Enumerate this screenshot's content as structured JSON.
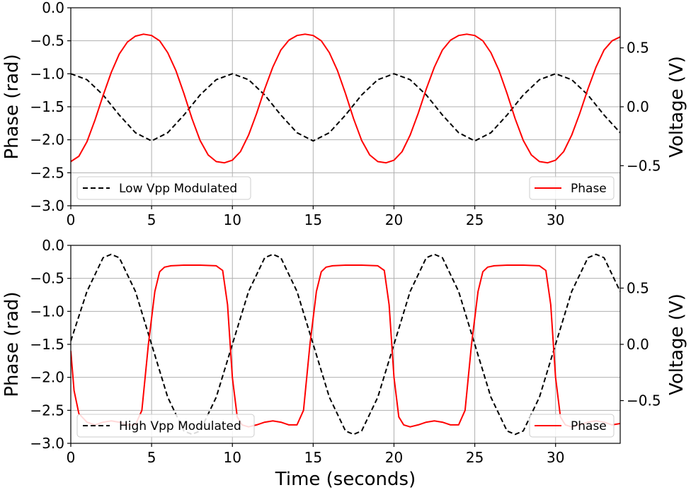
{
  "colors": {
    "phase": "#ff0000",
    "voltage": "#000000",
    "grid": "#b0b0b0"
  },
  "xlabel": "Time (seconds)",
  "chart_data": [
    {
      "type": "line",
      "panel": "top",
      "ylabel_left": "Phase (rad)",
      "ylabel_right": "Voltage (V)",
      "xlim": [
        0,
        34
      ],
      "ylim_left": [
        -3.0,
        0.0
      ],
      "ylim_right": [
        -0.84,
        0.84
      ],
      "xticks": [
        "0",
        "5",
        "10",
        "15",
        "20",
        "25",
        "30"
      ],
      "yticks_left": [
        "0.0",
        "−0.5",
        "−1.0",
        "−1.5",
        "−2.0",
        "−2.5",
        "−3.0"
      ],
      "yticks_right": [
        "0.5",
        "0.0",
        "−0.5"
      ],
      "grid": true,
      "period_s": 10,
      "series": [
        {
          "name": "Low Vpp Modulated",
          "axis": "right",
          "style": "dashed",
          "legend_loc": "lower-left",
          "x": [
            0,
            1,
            2,
            3,
            4,
            5,
            6,
            7,
            8,
            9,
            10,
            11,
            12,
            13,
            14,
            15,
            16,
            17,
            18,
            19,
            20,
            21,
            22,
            23,
            24,
            25,
            26,
            27,
            28,
            29,
            30,
            31,
            32,
            33,
            34
          ],
          "values": [
            0.28,
            0.23,
            0.1,
            -0.07,
            -0.22,
            -0.29,
            -0.22,
            -0.07,
            0.1,
            0.23,
            0.28,
            0.23,
            0.1,
            -0.07,
            -0.22,
            -0.29,
            -0.22,
            -0.07,
            0.1,
            0.23,
            0.28,
            0.23,
            0.1,
            -0.07,
            -0.22,
            -0.29,
            -0.22,
            -0.07,
            0.1,
            0.23,
            0.28,
            0.23,
            0.1,
            -0.07,
            -0.22
          ]
        },
        {
          "name": "Phase",
          "axis": "left",
          "style": "solid",
          "legend_loc": "lower-right",
          "x": [
            0,
            0.5,
            1,
            1.5,
            2,
            2.5,
            3,
            3.5,
            4,
            4.5,
            5,
            5.5,
            6,
            6.5,
            7,
            7.5,
            8,
            8.5,
            9,
            9.5,
            10,
            10.5,
            11,
            11.5,
            12,
            12.5,
            13,
            13.5,
            14,
            14.5,
            15,
            15.5,
            16,
            16.5,
            17,
            17.5,
            18,
            18.5,
            19,
            19.5,
            20,
            20.5,
            21,
            21.5,
            22,
            22.5,
            23,
            23.5,
            24,
            24.5,
            25,
            25.5,
            26,
            26.5,
            27,
            27.5,
            28,
            28.5,
            29,
            29.5,
            30,
            30.5,
            31,
            31.5,
            32,
            32.5,
            33,
            33.5,
            34
          ],
          "values": [
            -2.33,
            -2.25,
            -2.03,
            -1.7,
            -1.33,
            -0.98,
            -0.7,
            -0.52,
            -0.43,
            -0.4,
            -0.42,
            -0.5,
            -0.68,
            -0.95,
            -1.3,
            -1.68,
            -2.01,
            -2.23,
            -2.33,
            -2.35,
            -2.31,
            -2.18,
            -1.93,
            -1.6,
            -1.23,
            -0.9,
            -0.64,
            -0.49,
            -0.42,
            -0.4,
            -0.42,
            -0.5,
            -0.68,
            -0.95,
            -1.3,
            -1.68,
            -2.01,
            -2.23,
            -2.33,
            -2.35,
            -2.31,
            -2.18,
            -1.93,
            -1.6,
            -1.23,
            -0.9,
            -0.64,
            -0.49,
            -0.42,
            -0.4,
            -0.42,
            -0.5,
            -0.68,
            -0.95,
            -1.3,
            -1.68,
            -2.01,
            -2.23,
            -2.33,
            -2.35,
            -2.31,
            -2.18,
            -1.93,
            -1.6,
            -1.23,
            -0.9,
            -0.64,
            -0.5,
            -0.44
          ]
        }
      ]
    },
    {
      "type": "line",
      "panel": "bottom",
      "ylabel_left": "Phase (rad)",
      "ylabel_right": "Voltage (V)",
      "xlabel": "Time (seconds)",
      "xlim": [
        0,
        34
      ],
      "ylim_left": [
        -3.0,
        0.0
      ],
      "ylim_right": [
        -0.88,
        0.88
      ],
      "xticks": [
        "0",
        "5",
        "10",
        "15",
        "20",
        "25",
        "30"
      ],
      "yticks_left": [
        "0.0",
        "−0.5",
        "−1.0",
        "−1.5",
        "−2.0",
        "−2.5",
        "−3.0"
      ],
      "yticks_right": [
        "0.5",
        "0.0",
        "−0.5"
      ],
      "grid": true,
      "period_s": 10,
      "series": [
        {
          "name": "High Vpp Modulated",
          "axis": "right",
          "style": "dashed",
          "legend_loc": "lower-left",
          "x": [
            0,
            1,
            2,
            2.5,
            3,
            4,
            5,
            6,
            7,
            7.5,
            8,
            9,
            10,
            11,
            12,
            12.5,
            13,
            14,
            15,
            16,
            17,
            17.5,
            18,
            19,
            20,
            21,
            22,
            22.5,
            23,
            24,
            25,
            26,
            27,
            27.5,
            28,
            29,
            30,
            31,
            32,
            32.5,
            33,
            34
          ],
          "values": [
            0.03,
            0.47,
            0.77,
            0.8,
            0.77,
            0.47,
            0.0,
            -0.47,
            -0.77,
            -0.8,
            -0.77,
            -0.47,
            0.0,
            0.47,
            0.77,
            0.8,
            0.77,
            0.47,
            0.0,
            -0.47,
            -0.77,
            -0.8,
            -0.77,
            -0.47,
            0.0,
            0.47,
            0.77,
            0.8,
            0.77,
            0.47,
            0.0,
            -0.47,
            -0.77,
            -0.8,
            -0.77,
            -0.47,
            0.0,
            0.47,
            0.77,
            0.8,
            0.77,
            0.47
          ]
        },
        {
          "name": "Phase",
          "axis": "left",
          "style": "solid",
          "legend_loc": "lower-right",
          "x": [
            0,
            0.2,
            0.5,
            1,
            1.5,
            2,
            2.5,
            3,
            3.5,
            4,
            4.4,
            4.8,
            5.2,
            5.5,
            5.8,
            6.2,
            7,
            8,
            9,
            9.4,
            9.7,
            10,
            10.3,
            10.6,
            11,
            11.5,
            12,
            12.5,
            13,
            13.5,
            14,
            14.4,
            14.8,
            15.2,
            15.5,
            15.8,
            16.2,
            17,
            18,
            19,
            19.4,
            19.7,
            20,
            20.3,
            20.6,
            21,
            21.5,
            22,
            22.5,
            23,
            23.5,
            24,
            24.4,
            24.8,
            25.2,
            25.5,
            25.8,
            26.2,
            27,
            28,
            29,
            29.4,
            29.7,
            30,
            30.3,
            30.6,
            31,
            31.5,
            32,
            32.5,
            33,
            33.5,
            34
          ],
          "values": [
            -1.6,
            -2.2,
            -2.55,
            -2.68,
            -2.72,
            -2.68,
            -2.66,
            -2.68,
            -2.72,
            -2.72,
            -2.5,
            -1.5,
            -0.7,
            -0.4,
            -0.33,
            -0.31,
            -0.3,
            -0.3,
            -0.31,
            -0.38,
            -0.9,
            -2.0,
            -2.6,
            -2.72,
            -2.75,
            -2.72,
            -2.68,
            -2.66,
            -2.68,
            -2.72,
            -2.72,
            -2.5,
            -1.5,
            -0.7,
            -0.4,
            -0.33,
            -0.31,
            -0.3,
            -0.3,
            -0.31,
            -0.38,
            -0.9,
            -2.0,
            -2.6,
            -2.72,
            -2.75,
            -2.72,
            -2.68,
            -2.66,
            -2.68,
            -2.72,
            -2.72,
            -2.5,
            -1.5,
            -0.7,
            -0.4,
            -0.33,
            -0.31,
            -0.3,
            -0.3,
            -0.31,
            -0.38,
            -0.9,
            -2.0,
            -2.6,
            -2.72,
            -2.75,
            -2.72,
            -2.68,
            -2.66,
            -2.68,
            -2.72,
            -2.7
          ]
        }
      ]
    }
  ]
}
